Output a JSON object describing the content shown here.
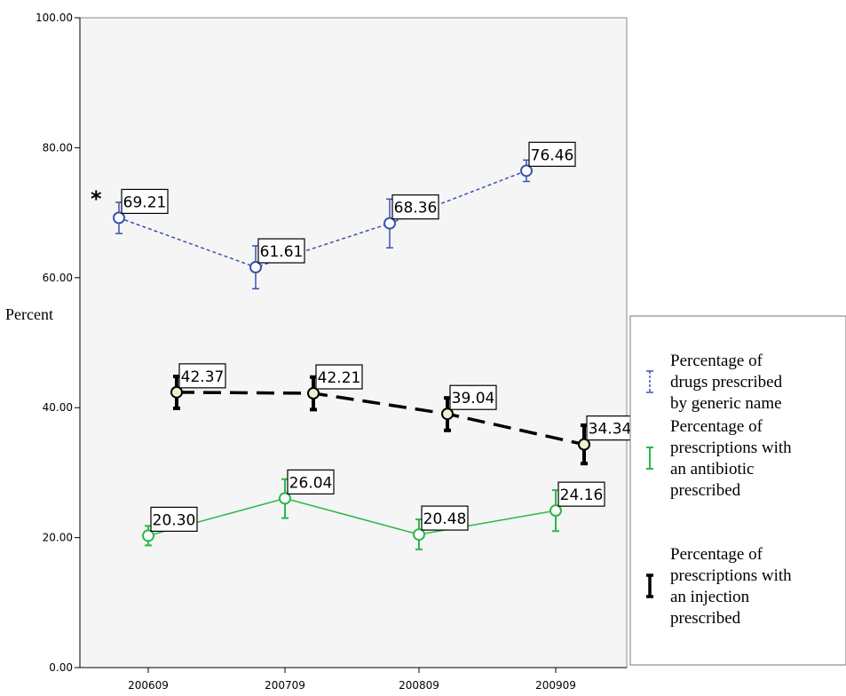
{
  "chart_data": {
    "type": "line",
    "categories": [
      "200609",
      "200709",
      "200809",
      "200909"
    ],
    "ylabel": "Percent",
    "ylim": [
      0,
      100
    ],
    "yticks": [
      "0.00",
      "20.00",
      "40.00",
      "60.00",
      "80.00",
      "100.00"
    ],
    "grid": false,
    "legend_position": "right",
    "annotation": "*",
    "series": [
      {
        "name": "Percentage of drugs prescribed by generic name",
        "legend_lines": [
          "Percentage of",
          "drugs prescribed",
          "by generic name"
        ],
        "values": [
          69.21,
          61.61,
          68.36,
          76.46
        ],
        "labels": [
          "69.21",
          "61.61",
          "68.36",
          "76.46"
        ],
        "error_low": [
          66.8,
          58.3,
          64.6,
          74.8
        ],
        "error_high": [
          71.6,
          64.9,
          72.1,
          78.1
        ],
        "color": "#3a52b0",
        "marker_fill": "#ffffff",
        "dash": "4,3",
        "line_width": 1.5,
        "error_width": 1.5
      },
      {
        "name": "Percentage of prescriptions with an antibiotic prescribed",
        "legend_lines": [
          "Percentage of",
          "prescriptions with",
          "an antibiotic",
          "prescribed"
        ],
        "values": [
          20.3,
          26.04,
          20.48,
          24.16
        ],
        "labels": [
          "20.30",
          "26.04",
          "20.48",
          "24.16"
        ],
        "error_low": [
          18.8,
          23.0,
          18.2,
          21.0
        ],
        "error_high": [
          21.8,
          29.0,
          22.8,
          27.3
        ],
        "color": "#2bb84a",
        "marker_fill": "#ffffff",
        "dash": "",
        "line_width": 1.5,
        "error_width": 2
      },
      {
        "name": "Percentage of prescriptions with an injection prescribed",
        "legend_lines": [
          "Percentage of",
          "prescriptions with",
          "an injection",
          "prescribed"
        ],
        "values": [
          42.37,
          42.21,
          39.04,
          34.34
        ],
        "labels": [
          "42.37",
          "42.21",
          "39.04",
          "34.34"
        ],
        "error_low": [
          39.9,
          39.7,
          36.5,
          31.4
        ],
        "error_high": [
          44.8,
          44.7,
          41.5,
          37.3
        ],
        "color": "#000000",
        "marker_fill": "#f2eed2",
        "dash": "20,10",
        "line_width": 3.5,
        "error_width": 4
      }
    ]
  }
}
